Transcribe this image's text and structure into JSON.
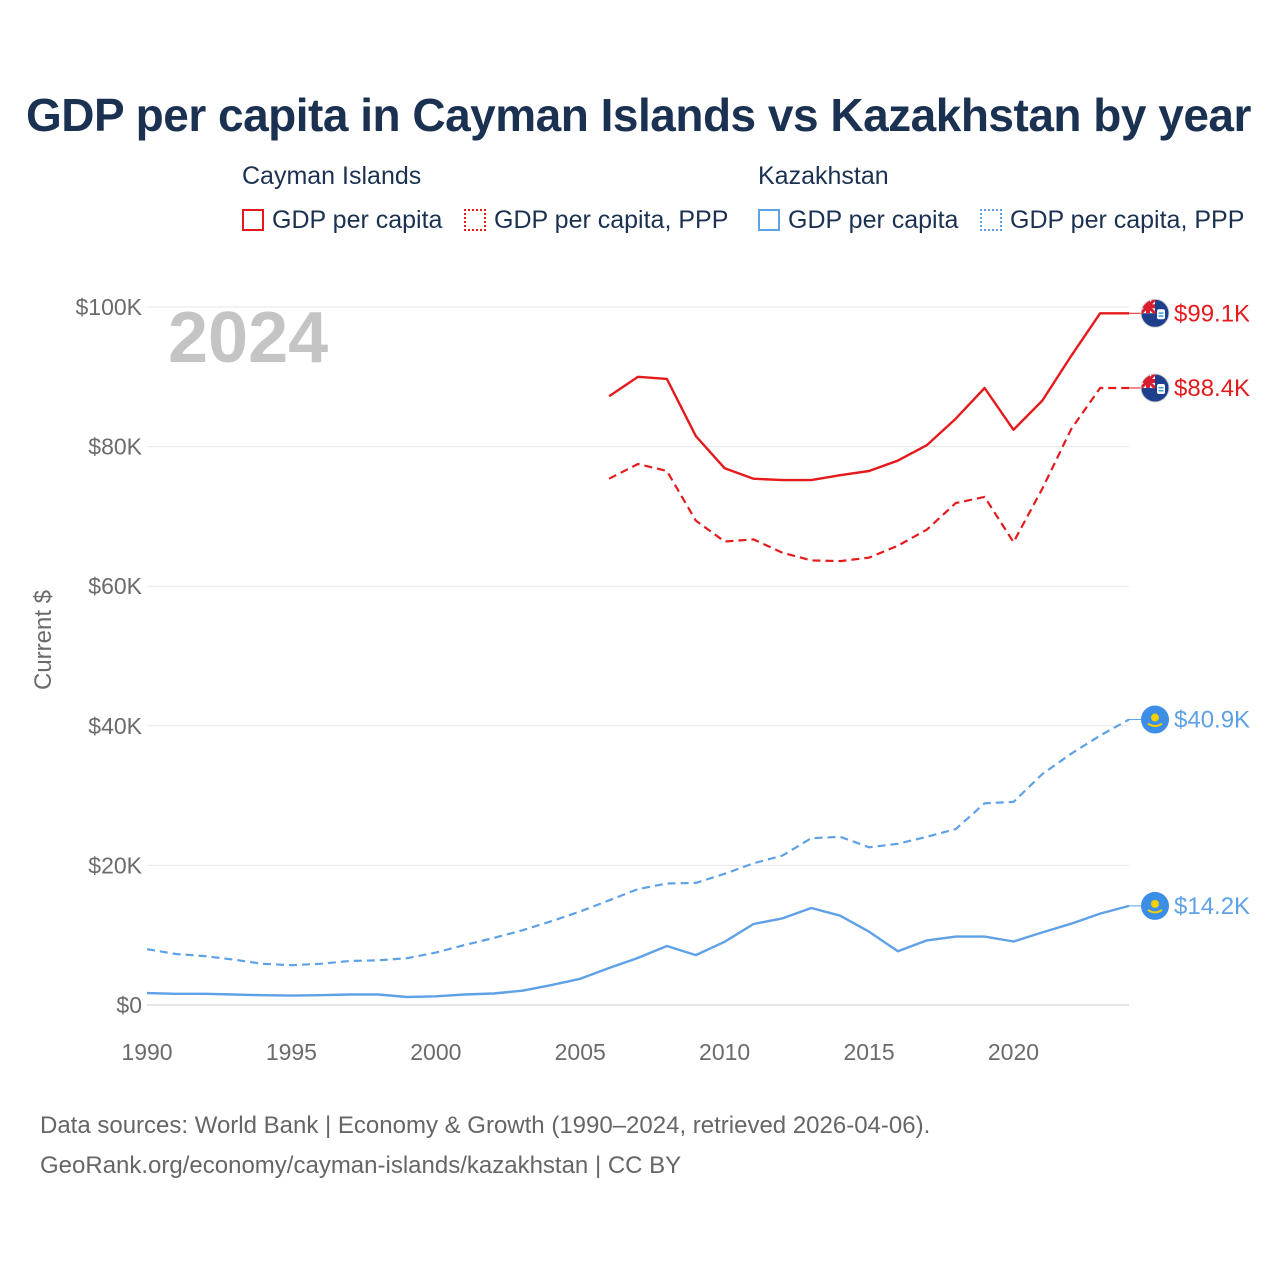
{
  "chart_data": {
    "type": "line",
    "title": "GDP per capita in Cayman Islands vs Kazakhstan by year",
    "ylabel": "Current $",
    "xlabel": "",
    "year_watermark": "2024",
    "xlim": [
      1990,
      2024
    ],
    "ylim": [
      0,
      100000
    ],
    "x_ticks": [
      {
        "value": 1990,
        "label": "1990"
      },
      {
        "value": 1995,
        "label": "1995"
      },
      {
        "value": 2000,
        "label": "2000"
      },
      {
        "value": 2005,
        "label": "2005"
      },
      {
        "value": 2010,
        "label": "2010"
      },
      {
        "value": 2015,
        "label": "2015"
      },
      {
        "value": 2020,
        "label": "2020"
      }
    ],
    "y_ticks": [
      {
        "value": 0,
        "label": "$0"
      },
      {
        "value": 20000,
        "label": "$20K"
      },
      {
        "value": 40000,
        "label": "$40K"
      },
      {
        "value": 60000,
        "label": "$60K"
      },
      {
        "value": 80000,
        "label": "$80K"
      },
      {
        "value": 100000,
        "label": "$100K"
      }
    ],
    "legend": {
      "groups": [
        {
          "name": "Cayman Islands",
          "items": [
            "GDP per capita",
            "GDP per capita, PPP"
          ]
        },
        {
          "name": "Kazakhstan",
          "items": [
            "GDP per capita",
            "GDP per capita, PPP"
          ]
        }
      ]
    },
    "series": [
      {
        "name": "Cayman Islands — GDP per capita",
        "country": "Cayman Islands",
        "color": "#e41a1c",
        "dash": "solid",
        "end_label": "$99.1K",
        "x": [
          2006,
          2007,
          2008,
          2009,
          2010,
          2011,
          2012,
          2013,
          2014,
          2015,
          2016,
          2017,
          2018,
          2019,
          2020,
          2021,
          2022,
          2023,
          2024
        ],
        "values": [
          87200,
          90000,
          89700,
          81500,
          76900,
          75400,
          75200,
          75200,
          75900,
          76500,
          78000,
          80200,
          84000,
          88400,
          82400,
          86600,
          93000,
          99100,
          99100
        ]
      },
      {
        "name": "Cayman Islands — GDP per capita, PPP",
        "country": "Cayman Islands",
        "color": "#e41a1c",
        "dash": "dashed",
        "end_label": "$88.4K",
        "x": [
          2006,
          2007,
          2008,
          2009,
          2010,
          2011,
          2012,
          2013,
          2014,
          2015,
          2016,
          2017,
          2018,
          2019,
          2020,
          2021,
          2022,
          2023,
          2024
        ],
        "values": [
          75400,
          77500,
          76500,
          69400,
          66400,
          66700,
          64800,
          63700,
          63600,
          64100,
          65800,
          68100,
          71900,
          72800,
          66300,
          74000,
          82500,
          88400,
          88400
        ]
      },
      {
        "name": "Kazakhstan — GDP per capita, PPP",
        "country": "Kazakhstan",
        "color": "#5ea1e6",
        "dash": "dashed",
        "end_label": "$40.9K",
        "x": [
          1990,
          1991,
          1992,
          1993,
          1994,
          1995,
          1996,
          1997,
          1998,
          1999,
          2000,
          2001,
          2002,
          2003,
          2004,
          2005,
          2006,
          2007,
          2008,
          2009,
          2010,
          2011,
          2012,
          2013,
          2014,
          2015,
          2016,
          2017,
          2018,
          2019,
          2020,
          2021,
          2022,
          2023,
          2024
        ],
        "values": [
          8000,
          7300,
          7000,
          6500,
          5900,
          5700,
          5900,
          6300,
          6400,
          6700,
          7500,
          8600,
          9600,
          10700,
          12000,
          13400,
          15000,
          16600,
          17400,
          17500,
          18800,
          20300,
          21400,
          23900,
          24100,
          22600,
          23100,
          24100,
          25200,
          28900,
          29100,
          33100,
          36000,
          38600,
          40900
        ]
      },
      {
        "name": "Kazakhstan — GDP per capita",
        "country": "Kazakhstan",
        "color": "#5ea1e6",
        "dash": "solid",
        "end_label": "$14.2K",
        "x": [
          1990,
          1991,
          1992,
          1993,
          1994,
          1995,
          1996,
          1997,
          1998,
          1999,
          2000,
          2001,
          2002,
          2003,
          2004,
          2005,
          2006,
          2007,
          2008,
          2009,
          2010,
          2011,
          2012,
          2013,
          2014,
          2015,
          2016,
          2017,
          2018,
          2019,
          2020,
          2021,
          2022,
          2023,
          2024
        ],
        "values": [
          1700,
          1600,
          1600,
          1500,
          1400,
          1350,
          1400,
          1500,
          1500,
          1150,
          1250,
          1500,
          1650,
          2050,
          2850,
          3750,
          5300,
          6750,
          8450,
          7150,
          9050,
          11600,
          12400,
          13900,
          12800,
          10500,
          7700,
          9250,
          9800,
          9800,
          9100,
          10400,
          11650,
          13100,
          14200
        ]
      }
    ]
  },
  "source": {
    "line1": "Data sources: World Bank | Economy & Growth (1990–2024, retrieved 2026-04-06).",
    "line2": "GeoRank.org/economy/cayman-islands/kazakhstan | CC BY"
  }
}
